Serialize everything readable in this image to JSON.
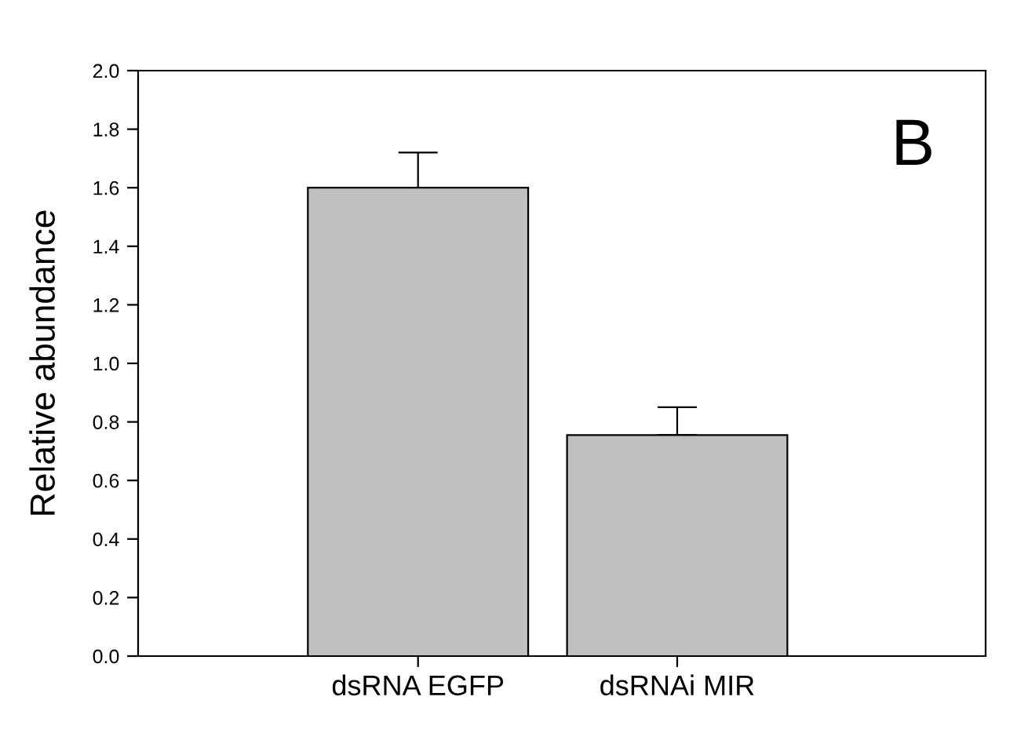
{
  "chart_data": {
    "type": "bar",
    "ylabel": "Relative abundance",
    "categories": [
      "dsRNA EGFP",
      "dsRNAi MIR"
    ],
    "values": [
      1.6,
      0.755
    ],
    "errors": [
      [
        1.6,
        1.72
      ],
      [
        0.755,
        0.85
      ]
    ],
    "color": "#c0c0c0",
    "ylim": [
      0,
      2.0
    ],
    "yticks": [
      {
        "value": 0,
        "label": "0.0"
      },
      {
        "value": 0.2,
        "label": "0.2"
      },
      {
        "value": 0.4,
        "label": "0.4"
      },
      {
        "value": 0.6,
        "label": "0.6"
      },
      {
        "value": 0.8,
        "label": "0.8"
      },
      {
        "value": 1.0,
        "label": "1.0"
      },
      {
        "value": 1.2,
        "label": "1.2"
      },
      {
        "value": 1.4,
        "label": "1.4"
      },
      {
        "value": 1.6,
        "label": "1.6"
      },
      {
        "value": 1.8,
        "label": "1.8"
      },
      {
        "value": 2.0,
        "label": "2.0"
      }
    ],
    "annotations": [
      "B"
    ],
    "grid": false
  }
}
